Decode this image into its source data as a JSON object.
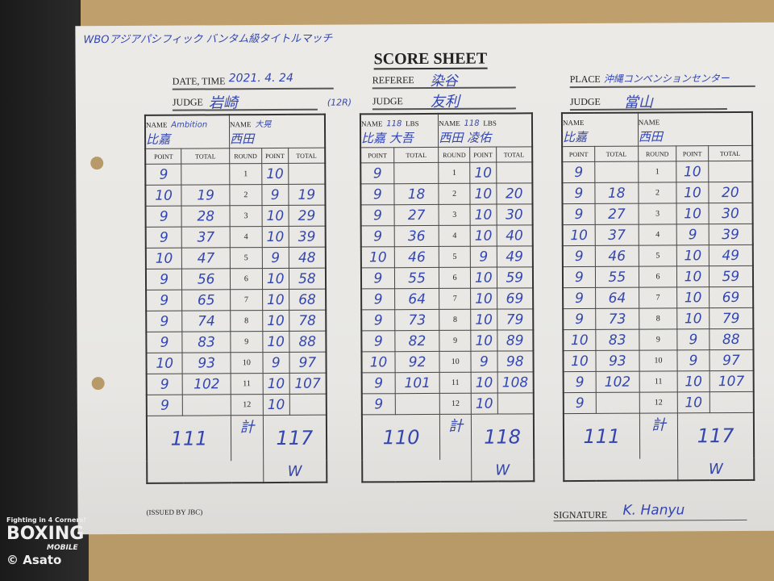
{
  "header": {
    "event": "WBOアジアパシフィック バンタム級タイトルマッチ",
    "title": "SCORE SHEET",
    "date_label": "DATE, TIME",
    "date": "2021. 4. 24",
    "referee_label": "REFEREE",
    "referee": "染谷",
    "place_label": "PLACE",
    "place": "沖縄コンベンションセンター",
    "judge_label": "JUDGE",
    "rounds_note": "(12R)"
  },
  "columns": {
    "name": "NAME",
    "lbs": "LBS",
    "point": "POINT",
    "total": "TOTAL",
    "round": "ROUND",
    "sum": "計"
  },
  "judges": [
    {
      "judge": "岩崎",
      "red_name": "比嘉",
      "red_note": "Ambition",
      "blue_name": "西田",
      "blue_note": "大晃",
      "red_lbs": "",
      "blue_lbs": "",
      "red_points": [
        "9",
        "10",
        "9",
        "9",
        "10",
        "9",
        "9",
        "9",
        "9",
        "10",
        "9",
        "9"
      ],
      "red_totals": [
        "",
        "19",
        "28",
        "37",
        "47",
        "56",
        "65",
        "74",
        "83",
        "93",
        "102",
        ""
      ],
      "blue_points": [
        "10",
        "9",
        "10",
        "10",
        "9",
        "10",
        "10",
        "10",
        "10",
        "9",
        "10",
        "10"
      ],
      "blue_totals": [
        "",
        "19",
        "29",
        "39",
        "48",
        "58",
        "68",
        "78",
        "88",
        "97",
        "107",
        ""
      ],
      "red_final": "111",
      "blue_final": "117",
      "winner_mark": "W"
    },
    {
      "judge": "友利",
      "red_name": "比嘉 大吾",
      "red_note": "",
      "blue_name": "西田 凌佑",
      "blue_note": "",
      "red_lbs": "118",
      "blue_lbs": "118",
      "red_points": [
        "9",
        "9",
        "9",
        "9",
        "10",
        "9",
        "9",
        "9",
        "9",
        "10",
        "9",
        "9"
      ],
      "red_totals": [
        "",
        "18",
        "27",
        "36",
        "46",
        "55",
        "64",
        "73",
        "82",
        "92",
        "101",
        ""
      ],
      "blue_points": [
        "10",
        "10",
        "10",
        "10",
        "9",
        "10",
        "10",
        "10",
        "10",
        "9",
        "10",
        "10"
      ],
      "blue_totals": [
        "",
        "20",
        "30",
        "40",
        "49",
        "59",
        "69",
        "79",
        "89",
        "98",
        "108",
        ""
      ],
      "red_final": "110",
      "blue_final": "118",
      "winner_mark": "W"
    },
    {
      "judge": "當山",
      "red_name": "比嘉",
      "red_note": "",
      "blue_name": "西田",
      "blue_note": "",
      "red_lbs": "",
      "blue_lbs": "",
      "red_points": [
        "9",
        "9",
        "9",
        "10",
        "9",
        "9",
        "9",
        "9",
        "10",
        "10",
        "9",
        "9"
      ],
      "red_totals": [
        "",
        "18",
        "27",
        "37",
        "46",
        "55",
        "64",
        "73",
        "83",
        "93",
        "102",
        ""
      ],
      "blue_points": [
        "10",
        "10",
        "10",
        "9",
        "10",
        "10",
        "10",
        "10",
        "9",
        "9",
        "10",
        "10"
      ],
      "blue_totals": [
        "",
        "20",
        "30",
        "39",
        "49",
        "59",
        "69",
        "79",
        "88",
        "97",
        "107",
        ""
      ],
      "red_final": "111",
      "blue_final": "117",
      "winner_mark": "W"
    }
  ],
  "footer": {
    "issued": "(ISSUED BY JBC)",
    "signature_label": "SIGNATURE",
    "signature": "K. Hanyu"
  },
  "watermark": {
    "tagline": "Fighting in 4 Corners!",
    "brand": "BOXING",
    "sub": "MOBILE",
    "credit": "© Asato"
  }
}
